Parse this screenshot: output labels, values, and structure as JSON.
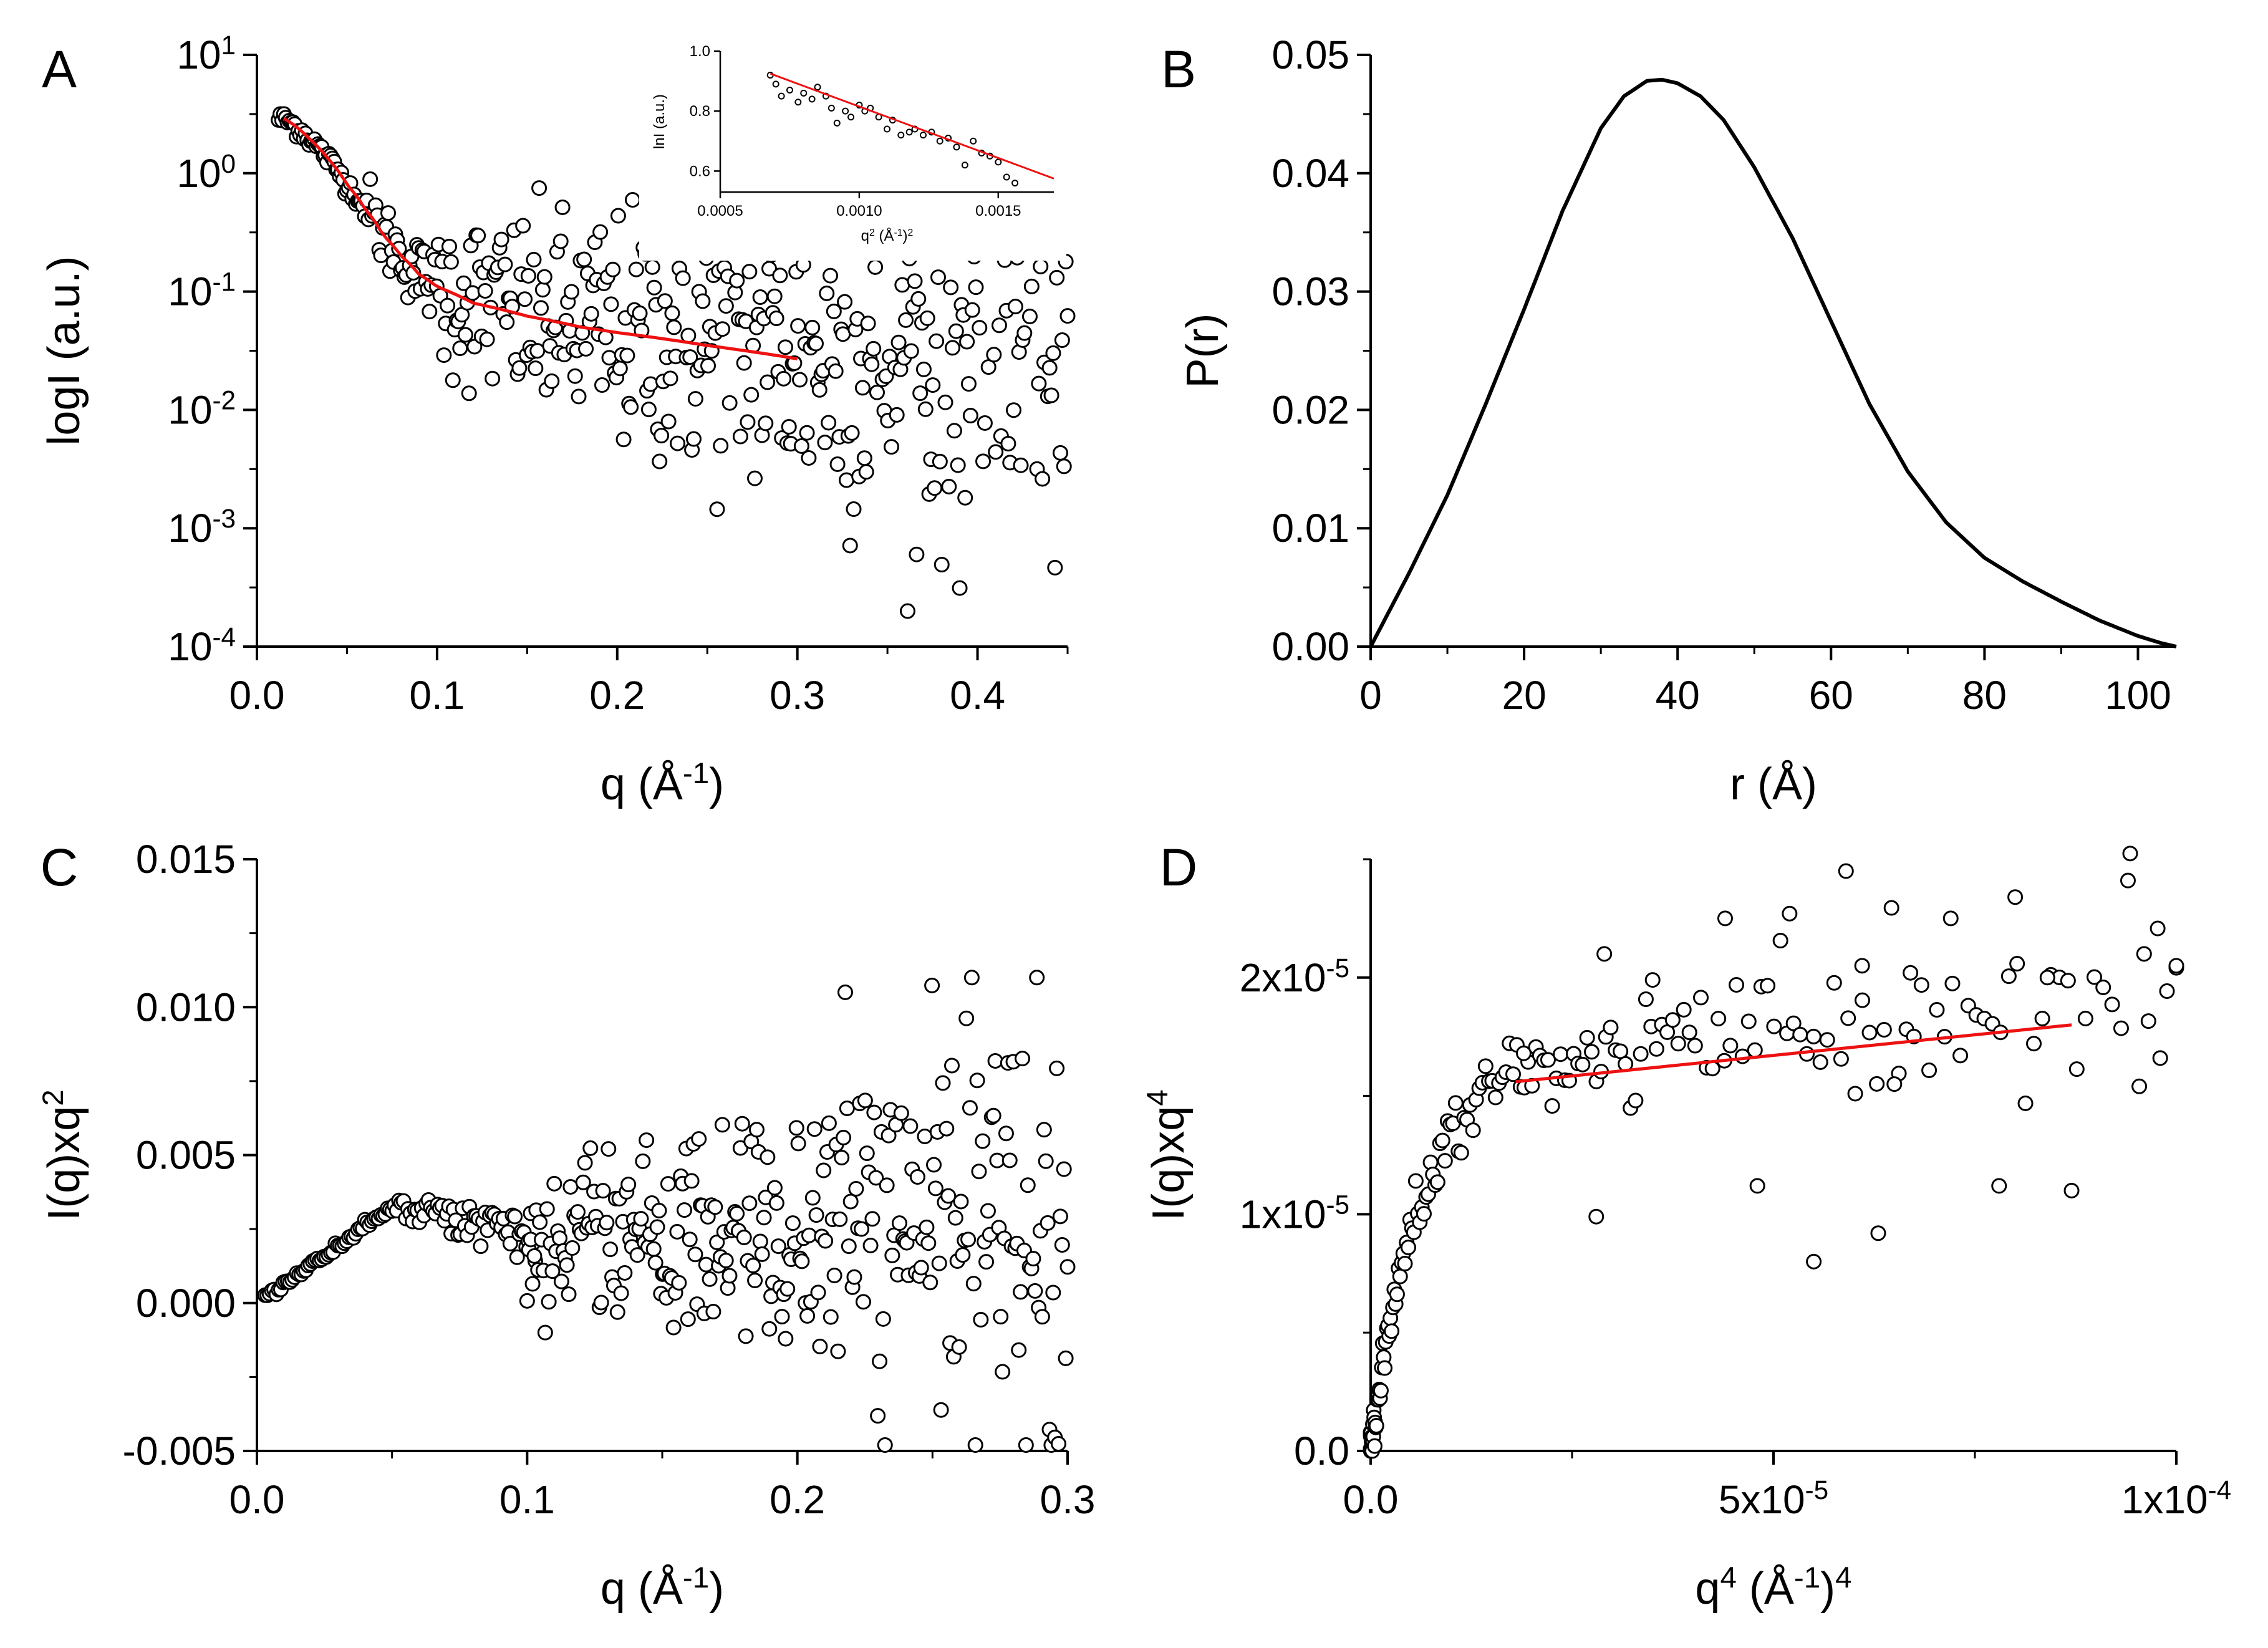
{
  "figure": {
    "panels": [
      "A",
      "B",
      "C",
      "D"
    ]
  },
  "colors": {
    "fit": "#ee1111",
    "data": "#000000",
    "marker_fill": "#ffffff"
  },
  "chart_data": [
    {
      "id": "A",
      "type": "scatter",
      "panel_letter": "A",
      "xlabel_text": "q (Å",
      "xlabel_sup": "-1",
      "xlabel_tail": ")",
      "ylabel_text": "logI (a.u.)",
      "xlim": [
        0,
        0.45
      ],
      "ylim": [
        0.0001,
        10
      ],
      "yscale": "log",
      "xticks": [
        0.0,
        0.1,
        0.2,
        0.3,
        0.4
      ],
      "xtick_labels": [
        "0.0",
        "0.1",
        "0.2",
        "0.3",
        "0.4"
      ],
      "yticks": [
        0.0001,
        0.001,
        0.01,
        0.1,
        1,
        10
      ],
      "ytick_base": "10",
      "ytick_exps": [
        "-4",
        "-3",
        "-2",
        "-1",
        "0",
        "1"
      ],
      "scatter_model": {
        "description": "experimental SAXS intensity (open circles), q from 0.012 to 0.45",
        "x_range": [
          0.012,
          0.45
        ],
        "n_points": 440
      },
      "fit_curve": {
        "name": "fit",
        "x": [
          0.015,
          0.02,
          0.03,
          0.04,
          0.05,
          0.06,
          0.07,
          0.08,
          0.09,
          0.1,
          0.12,
          0.15,
          0.18,
          0.2,
          0.25,
          0.3
        ],
        "y": [
          2.9,
          2.6,
          1.9,
          1.3,
          0.8,
          0.5,
          0.3,
          0.2,
          0.14,
          0.11,
          0.08,
          0.062,
          0.05,
          0.045,
          0.035,
          0.027
        ]
      },
      "inset": {
        "type": "scatter",
        "xlabel_text": "q",
        "xlabel_sup": "2",
        "xlabel_tail": " (Å",
        "xlabel_sup2": "-1",
        "xlabel_tail2": ")",
        "xlabel_sup3": "2",
        "ylabel_text": "lnI (a.u.)",
        "xlim": [
          0.0005,
          0.0017
        ],
        "ylim": [
          0.53,
          1.0
        ],
        "xticks": [
          0.0005,
          0.001,
          0.0015
        ],
        "xtick_labels": [
          "0.0005",
          "0.0010",
          "0.0015"
        ],
        "yticks": [
          0.6,
          0.8,
          1.0
        ],
        "ytick_labels": [
          "0.6",
          "0.8",
          "1.0"
        ],
        "x": [
          0.00068,
          0.0007,
          0.00072,
          0.00075,
          0.00078,
          0.0008,
          0.00083,
          0.00085,
          0.00088,
          0.0009,
          0.00092,
          0.00095,
          0.00097,
          0.001,
          0.00102,
          0.00104,
          0.00107,
          0.0011,
          0.00112,
          0.00115,
          0.00118,
          0.0012,
          0.00123,
          0.00126,
          0.00129,
          0.00132,
          0.00135,
          0.00138,
          0.00141,
          0.00144,
          0.00147,
          0.0015,
          0.00153,
          0.00156
        ],
        "y": [
          0.92,
          0.89,
          0.85,
          0.87,
          0.83,
          0.86,
          0.84,
          0.88,
          0.85,
          0.81,
          0.76,
          0.8,
          0.78,
          0.82,
          0.8,
          0.81,
          0.78,
          0.74,
          0.77,
          0.72,
          0.73,
          0.74,
          0.72,
          0.73,
          0.7,
          0.71,
          0.68,
          0.62,
          0.7,
          0.66,
          0.65,
          0.63,
          0.58,
          0.56
        ],
        "fit_x": [
          0.00068,
          0.0017
        ],
        "fit_y": [
          0.925,
          0.575
        ]
      }
    },
    {
      "id": "B",
      "type": "line",
      "panel_letter": "B",
      "xlabel_text": "r (Å)",
      "ylabel_text": "P(r)",
      "xlim": [
        0,
        105
      ],
      "ylim": [
        0,
        0.05
      ],
      "xticks": [
        0,
        20,
        40,
        60,
        80,
        100
      ],
      "xtick_labels": [
        "0",
        "20",
        "40",
        "60",
        "80",
        "100"
      ],
      "yticks": [
        0,
        0.01,
        0.02,
        0.03,
        0.04,
        0.05
      ],
      "ytick_labels": [
        "0.00",
        "0.01",
        "0.02",
        "0.03",
        "0.04",
        "0.05"
      ],
      "series": [
        {
          "name": "P(r)",
          "x": [
            0,
            5,
            10,
            15,
            20,
            25,
            30,
            33,
            36,
            38,
            40,
            43,
            46,
            50,
            55,
            60,
            65,
            70,
            75,
            80,
            85,
            90,
            95,
            100,
            103,
            105
          ],
          "y": [
            0,
            0.0062,
            0.0128,
            0.0205,
            0.0285,
            0.0368,
            0.0438,
            0.0465,
            0.0478,
            0.0479,
            0.0476,
            0.0465,
            0.0445,
            0.0405,
            0.0345,
            0.0275,
            0.0205,
            0.0148,
            0.0105,
            0.0075,
            0.0055,
            0.0038,
            0.0022,
            0.0009,
            0.0003,
            0.0
          ]
        }
      ]
    },
    {
      "id": "C",
      "type": "scatter",
      "panel_letter": "C",
      "xlabel_text": "q (Å",
      "xlabel_sup": "-1",
      "xlabel_tail": ")",
      "ylabel_text": "I(q)xq",
      "ylabel_sup": "2",
      "xlim": [
        0,
        0.3
      ],
      "ylim": [
        -0.005,
        0.015
      ],
      "xticks": [
        0,
        0.1,
        0.2,
        0.3
      ],
      "xtick_labels": [
        "0.0",
        "0.1",
        "0.2",
        "0.3"
      ],
      "yticks": [
        -0.005,
        0,
        0.005,
        0.01,
        0.015
      ],
      "ytick_labels": [
        "-0.005",
        "0.000",
        "0.005",
        "0.010",
        "0.015"
      ],
      "scatter_model": {
        "description": "Kratky plot points (open circles), q from 0.003 to 0.30",
        "x_range": [
          0.003,
          0.3
        ],
        "n_points": 420
      }
    },
    {
      "id": "D",
      "type": "scatter",
      "panel_letter": "D",
      "xlabel_text": "q",
      "xlabel_sup": "4",
      "xlabel_tail": " (Å",
      "xlabel_sup2": "-1",
      "xlabel_tail2": ")",
      "xlabel_sup3": "4",
      "ylabel_text": "I(q)xq",
      "ylabel_sup": "4",
      "xlim": [
        0,
        0.0001
      ],
      "ylim": [
        0,
        2.5e-05
      ],
      "xticks": [
        0,
        5e-05,
        0.0001
      ],
      "xtick_labels": [
        "0.0",
        "5x10",
        "1x10"
      ],
      "xtick_exps": [
        "",
        "-5",
        "-4"
      ],
      "yticks": [
        0,
        1e-05,
        2e-05
      ],
      "ytick_labels": [
        "0.0",
        "1x10",
        "2x10"
      ],
      "ytick_exps": [
        "",
        "-5",
        "-5"
      ],
      "scatter_model": {
        "description": "Porod plot points (open circles), q^4 from 0 to 1e-4",
        "x_range": [
          0,
          0.0001
        ],
        "n_points": 190
      },
      "outliers": {
        "x": [
          1.9e-05,
          2.9e-05,
          3.5e-05,
          4.4e-05,
          5.2e-05,
          5.9e-05,
          6.1e-05,
          6.7e-05,
          7.2e-05,
          8e-05,
          8.4e-05,
          9.4e-05,
          9.6e-05,
          9.8e-05,
          0.0001,
          5.5e-05,
          6.3e-05,
          2.8e-05,
          8.7e-05,
          4.8e-05,
          7.8e-05,
          6.5e-05
        ],
        "y": [
          1.68e-05,
          2.1e-05,
          1.99e-05,
          2.25e-05,
          2.27e-05,
          2.45e-05,
          2.05e-05,
          2.02e-05,
          2.25e-05,
          2.34e-05,
          2e-05,
          2.41e-05,
          2.1e-05,
          1.66e-05,
          2.05e-05,
          8e-06,
          9.2e-06,
          9.9e-06,
          1.1e-05,
          1.12e-05,
          1.12e-05,
          1.55e-05
        ]
      },
      "fit_line": {
        "name": "fit",
        "x": [
          1.8e-05,
          8.7e-05
        ],
        "y": [
          1.56e-05,
          1.8e-05
        ]
      }
    }
  ]
}
